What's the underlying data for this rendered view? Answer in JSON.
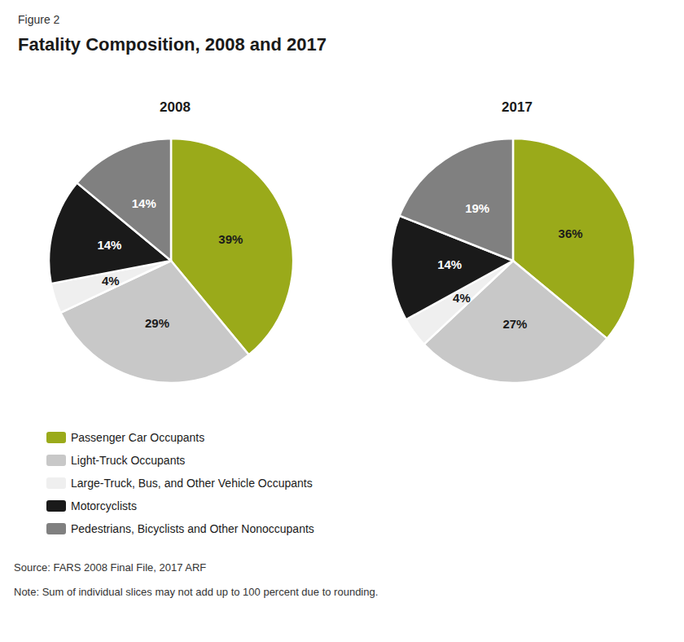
{
  "title": "Fatality Composition, 2008 and 2017",
  "annotations": [
    "Figure 2",
    "Source: FARS 2008 Final File, 2017 ARF",
    "Note: Sum of individual slices may not add up to 100 percent due to rounding."
  ],
  "legend": "bottom-left",
  "chart_data": [
    {
      "type": "pie",
      "title": "2008",
      "categories": [
        "Passenger Car Occupants",
        "Light-Truck Occupants",
        "Large-Truck, Bus, and Other Vehicle Occupants",
        "Motorcyclists",
        "Pedestrians, Bicyclists and Other Nonoccupants"
      ],
      "values": [
        39,
        29,
        4,
        14,
        14
      ],
      "value_labels": [
        "39%",
        "29%",
        "4%",
        "14%",
        "14%"
      ],
      "colors": [
        "#9aaa1a",
        "#c8c8c8",
        "#efefef",
        "#1a1a1a",
        "#808080"
      ],
      "data_labels": true
    },
    {
      "type": "pie",
      "title": "2017",
      "categories": [
        "Passenger Car Occupants",
        "Light-Truck Occupants",
        "Large-Truck, Bus, and Other Vehicle Occupants",
        "Motorcyclists",
        "Pedestrians, Bicyclists and Other Nonoccupants"
      ],
      "values": [
        36,
        27,
        4,
        14,
        19
      ],
      "value_labels": [
        "36%",
        "27%",
        "4%",
        "14%",
        "19%"
      ],
      "colors": [
        "#9aaa1a",
        "#c8c8c8",
        "#efefef",
        "#1a1a1a",
        "#808080"
      ],
      "data_labels": true
    }
  ]
}
